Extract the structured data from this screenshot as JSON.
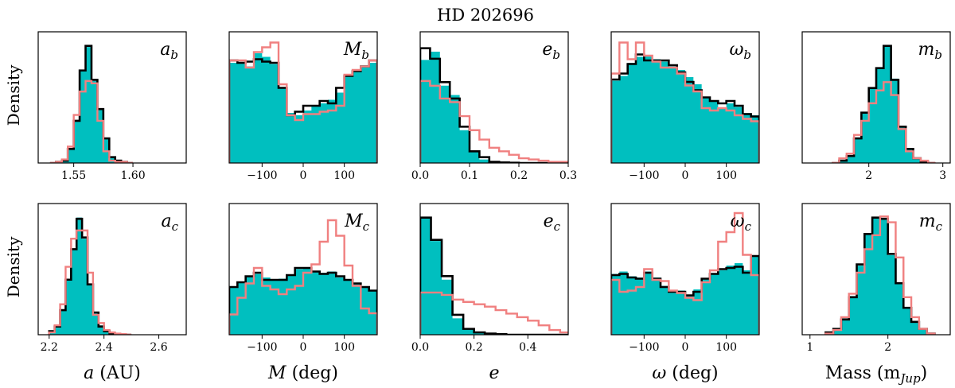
{
  "figure": {
    "title": "HD 202696",
    "row_ylabels": [
      "Density",
      "Density"
    ],
    "colors": {
      "filled": "#00bfbf",
      "black_line": "#000000",
      "red_line": "#f08080"
    }
  },
  "chart_data": [
    {
      "type": "area",
      "panel_label": {
        "base": "a",
        "sub": "b"
      },
      "xlim": [
        1.52,
        1.645
      ],
      "xticks": [
        1.55,
        1.6
      ],
      "xtick_labels": [
        "1.55",
        "1.60"
      ],
      "ylim": [
        0,
        1.12
      ],
      "bin_start": 1.53,
      "bin_width": 0.005,
      "series": [
        {
          "name": "filled",
          "values": [
            0,
            0.01,
            0.02,
            0.12,
            0.36,
            0.79,
            0.99,
            0.7,
            0.46,
            0.21,
            0.05,
            0.02,
            0.01,
            0
          ]
        },
        {
          "name": "black",
          "values": [
            0,
            0.01,
            0.02,
            0.12,
            0.36,
            0.79,
            1.0,
            0.71,
            0.46,
            0.21,
            0.05,
            0.02,
            0.01,
            0
          ]
        },
        {
          "name": "red",
          "values": [
            0,
            0.01,
            0.03,
            0.14,
            0.41,
            0.61,
            0.7,
            0.68,
            0.36,
            0.1,
            0.02,
            0.01,
            0.01,
            0
          ]
        }
      ]
    },
    {
      "type": "area",
      "panel_label": {
        "base": "M",
        "sub": "b"
      },
      "xlim": [
        -180,
        180
      ],
      "xticks": [
        -100,
        0,
        100
      ],
      "xtick_labels": [
        "−100",
        "0",
        "100"
      ],
      "ylim": [
        0,
        1.1
      ],
      "bin_start": -180,
      "bin_width": 20,
      "series": [
        {
          "name": "filled",
          "values": [
            0.84,
            0.84,
            0.81,
            0.92,
            0.89,
            0.83,
            0.63,
            0.42,
            0.4,
            0.44,
            0.48,
            0.5,
            0.53,
            0.59,
            0.74,
            0.78,
            0.82,
            0.84
          ]
        },
        {
          "name": "black",
          "values": [
            0.86,
            0.84,
            0.85,
            0.87,
            0.85,
            0.84,
            0.63,
            0.4,
            0.43,
            0.48,
            0.48,
            0.52,
            0.5,
            0.63,
            0.73,
            0.77,
            0.81,
            0.86
          ]
        },
        {
          "name": "red",
          "values": [
            0.86,
            0.86,
            0.8,
            0.93,
            0.97,
            1.01,
            0.66,
            0.4,
            0.36,
            0.41,
            0.41,
            0.43,
            0.44,
            0.48,
            0.74,
            0.78,
            0.81,
            0.86
          ]
        }
      ]
    },
    {
      "type": "area",
      "panel_label": {
        "base": "e",
        "sub": "b"
      },
      "xlim": [
        0,
        0.3
      ],
      "xticks": [
        0,
        0.1,
        0.2,
        0.3
      ],
      "xtick_labels": [
        "0.0",
        "0.1",
        "0.2",
        "0.3"
      ],
      "ylim": [
        0,
        1.12
      ],
      "bin_start": 0,
      "bin_width": 0.02,
      "series": [
        {
          "name": "filled",
          "values": [
            0.88,
            0.95,
            0.66,
            0.58,
            0.28,
            0.1,
            0.03,
            0.01,
            0.005,
            0.002,
            0,
            0,
            0,
            0,
            0
          ]
        },
        {
          "name": "black",
          "values": [
            0.98,
            0.89,
            0.69,
            0.55,
            0.31,
            0.1,
            0.05,
            0.01,
            0.005,
            0.002,
            0,
            0,
            0,
            0,
            0
          ]
        },
        {
          "name": "red",
          "values": [
            0.7,
            0.66,
            0.55,
            0.52,
            0.4,
            0.28,
            0.2,
            0.13,
            0.1,
            0.07,
            0.04,
            0.03,
            0.02,
            0.01,
            0.01
          ]
        }
      ]
    },
    {
      "type": "area",
      "panel_label": {
        "base": "ω",
        "sub": "b"
      },
      "xlim": [
        -180,
        180
      ],
      "xticks": [
        -100,
        0,
        100
      ],
      "xtick_labels": [
        "−100",
        "0",
        "100"
      ],
      "ylim": [
        0,
        1.1
      ],
      "bin_start": -180,
      "bin_width": 20,
      "series": [
        {
          "name": "filled",
          "values": [
            0.69,
            0.73,
            0.84,
            0.89,
            0.9,
            0.87,
            0.85,
            0.81,
            0.78,
            0.72,
            0.66,
            0.55,
            0.52,
            0.46,
            0.5,
            0.47,
            0.42,
            0.4
          ]
        },
        {
          "name": "black",
          "values": [
            0.7,
            0.75,
            0.83,
            0.91,
            0.86,
            0.86,
            0.86,
            0.82,
            0.76,
            0.68,
            0.61,
            0.55,
            0.52,
            0.5,
            0.52,
            0.48,
            0.41,
            0.39
          ]
        },
        {
          "name": "red",
          "values": [
            0.75,
            1.01,
            0.87,
            1.01,
            0.9,
            0.85,
            0.8,
            0.8,
            0.75,
            0.65,
            0.6,
            0.46,
            0.44,
            0.46,
            0.44,
            0.4,
            0.37,
            0.35
          ]
        }
      ]
    },
    {
      "type": "area",
      "panel_label": {
        "base": "m",
        "sub": "b"
      },
      "xlim": [
        1.1,
        3.1
      ],
      "xticks": [
        2,
        3
      ],
      "xtick_labels": [
        "2",
        "3"
      ],
      "ylim": [
        0,
        1.12
      ],
      "bin_start": 1.5,
      "bin_width": 0.1,
      "series": [
        {
          "name": "filled",
          "values": [
            0,
            0.02,
            0.06,
            0.21,
            0.43,
            0.64,
            0.81,
            1.0,
            0.72,
            0.31,
            0.12,
            0.04,
            0.01,
            0
          ]
        },
        {
          "name": "black",
          "values": [
            0,
            0.02,
            0.06,
            0.21,
            0.43,
            0.64,
            0.81,
            1.0,
            0.71,
            0.31,
            0.12,
            0.04,
            0.01,
            0
          ]
        },
        {
          "name": "red",
          "values": [
            0,
            0.04,
            0.08,
            0.24,
            0.36,
            0.51,
            0.62,
            0.69,
            0.58,
            0.29,
            0.1,
            0.04,
            0.02,
            0
          ]
        }
      ]
    },
    {
      "type": "area",
      "panel_label": {
        "base": "a",
        "sub": "c"
      },
      "xlim": [
        2.16,
        2.7
      ],
      "xticks": [
        2.2,
        2.4,
        2.6
      ],
      "xtick_labels": [
        "2.2",
        "2.4",
        "2.6"
      ],
      "ylim": [
        0,
        1.12
      ],
      "bin_start": 2.2,
      "bin_width": 0.02,
      "series": [
        {
          "name": "filled",
          "values": [
            0.03,
            0.06,
            0.21,
            0.47,
            0.73,
            1.0,
            0.82,
            0.43,
            0.19,
            0.08,
            0.03,
            0.01,
            0.005,
            0.002,
            0
          ]
        },
        {
          "name": "black",
          "values": [
            0.03,
            0.07,
            0.21,
            0.47,
            0.73,
            0.99,
            0.83,
            0.43,
            0.19,
            0.07,
            0.03,
            0.01,
            0.005,
            0.002,
            0
          ]
        },
        {
          "name": "red",
          "values": [
            0.02,
            0.08,
            0.26,
            0.58,
            0.82,
            0.89,
            0.89,
            0.53,
            0.17,
            0.1,
            0.04,
            0.02,
            0.01,
            0.005,
            0
          ]
        }
      ]
    },
    {
      "type": "area",
      "panel_label": {
        "base": "M",
        "sub": "c"
      },
      "xlim": [
        -180,
        180
      ],
      "xticks": [
        -100,
        0,
        100
      ],
      "xtick_labels": [
        "−100",
        "0",
        "100"
      ],
      "ylim": [
        0,
        1.1
      ],
      "bin_start": -180,
      "bin_width": 20,
      "series": [
        {
          "name": "filled",
          "values": [
            0.4,
            0.44,
            0.49,
            0.51,
            0.48,
            0.46,
            0.47,
            0.5,
            0.55,
            0.56,
            0.53,
            0.52,
            0.53,
            0.48,
            0.46,
            0.43,
            0.4,
            0.37
          ]
        },
        {
          "name": "black",
          "values": [
            0.4,
            0.44,
            0.49,
            0.52,
            0.46,
            0.46,
            0.46,
            0.5,
            0.56,
            0.56,
            0.53,
            0.51,
            0.52,
            0.49,
            0.46,
            0.43,
            0.4,
            0.37
          ]
        },
        {
          "name": "red",
          "values": [
            0.17,
            0.31,
            0.43,
            0.56,
            0.41,
            0.38,
            0.34,
            0.38,
            0.41,
            0.52,
            0.59,
            0.78,
            0.96,
            0.83,
            0.58,
            0.41,
            0.22,
            0.18
          ]
        }
      ]
    },
    {
      "type": "area",
      "panel_label": {
        "base": "e",
        "sub": "c"
      },
      "xlim": [
        0,
        0.55
      ],
      "xticks": [
        0,
        0.2,
        0.4
      ],
      "xtick_labels": [
        "0.0",
        "0.2",
        "0.4"
      ],
      "ylim": [
        0,
        1.12
      ],
      "bin_start": 0,
      "bin_width": 0.04,
      "series": [
        {
          "name": "filled",
          "values": [
            1.0,
            0.8,
            0.47,
            0.14,
            0.05,
            0.02,
            0.01,
            0.005,
            0,
            0,
            0,
            0,
            0,
            0
          ]
        },
        {
          "name": "black",
          "values": [
            1.0,
            0.81,
            0.5,
            0.17,
            0.05,
            0.02,
            0.01,
            0.005,
            0,
            0,
            0,
            0,
            0,
            0
          ]
        },
        {
          "name": "red",
          "values": [
            0.36,
            0.36,
            0.34,
            0.3,
            0.28,
            0.26,
            0.24,
            0.21,
            0.18,
            0.15,
            0.12,
            0.08,
            0.04,
            0.02
          ]
        }
      ]
    },
    {
      "type": "area",
      "panel_label": {
        "base": "ω",
        "sub": "c"
      },
      "xlim": [
        -180,
        180
      ],
      "xticks": [
        -100,
        0,
        100
      ],
      "xtick_labels": [
        "−100",
        "0",
        "100"
      ],
      "ylim": [
        0,
        1.1
      ],
      "bin_start": -180,
      "bin_width": 20,
      "series": [
        {
          "name": "filled",
          "values": [
            0.51,
            0.53,
            0.49,
            0.48,
            0.53,
            0.48,
            0.41,
            0.37,
            0.37,
            0.33,
            0.38,
            0.47,
            0.51,
            0.54,
            0.58,
            0.6,
            0.54,
            0.66
          ]
        },
        {
          "name": "black",
          "values": [
            0.5,
            0.51,
            0.48,
            0.47,
            0.52,
            0.47,
            0.4,
            0.36,
            0.36,
            0.33,
            0.36,
            0.47,
            0.51,
            0.55,
            0.56,
            0.57,
            0.52,
            0.66
          ]
        },
        {
          "name": "red",
          "values": [
            0.46,
            0.36,
            0.37,
            0.4,
            0.55,
            0.46,
            0.45,
            0.37,
            0.35,
            0.31,
            0.29,
            0.44,
            0.54,
            0.78,
            0.86,
            1.02,
            0.67,
            0.5
          ]
        }
      ]
    },
    {
      "type": "area",
      "panel_label": {
        "base": "m",
        "sub": "c"
      },
      "xlim": [
        0.9,
        2.8
      ],
      "xticks": [
        1,
        2
      ],
      "xtick_labels": [
        "1",
        "2"
      ],
      "ylim": [
        0,
        1.12
      ],
      "bin_start": 1.2,
      "bin_width": 0.1,
      "series": [
        {
          "name": "filled",
          "values": [
            0.02,
            0.05,
            0.14,
            0.33,
            0.59,
            0.86,
            1.0,
            0.99,
            0.68,
            0.44,
            0.23,
            0.11,
            0.05,
            0.01
          ]
        },
        {
          "name": "black",
          "values": [
            0.02,
            0.05,
            0.13,
            0.32,
            0.6,
            0.86,
            1.0,
            0.99,
            0.69,
            0.44,
            0.23,
            0.11,
            0.05,
            0.01
          ]
        },
        {
          "name": "red",
          "values": [
            0.01,
            0.04,
            0.15,
            0.35,
            0.53,
            0.73,
            0.85,
            1.01,
            0.96,
            0.66,
            0.32,
            0.15,
            0.05,
            0.01
          ]
        }
      ]
    }
  ],
  "column_xlabels": [
    {
      "sym": "a",
      "unit": " (AU)",
      "sub": ""
    },
    {
      "sym": "M",
      "unit": " (deg)",
      "sub": ""
    },
    {
      "sym": "e",
      "unit": "",
      "sub": ""
    },
    {
      "sym": "ω",
      "unit": " (deg)",
      "sub": ""
    },
    {
      "sym": "",
      "unit": "Mass (m",
      "sub": "Jup",
      "close": ")"
    }
  ]
}
